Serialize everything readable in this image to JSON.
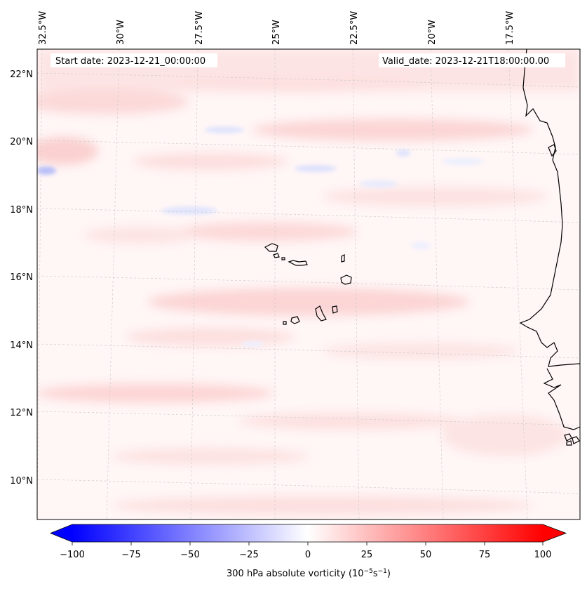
{
  "map": {
    "start_date": "Start date: 2023-12-21_00:00:00",
    "valid_date": "Valid_date: 2023-12-21T18:00:00.00",
    "lon_labels": [
      "32.5°W",
      "30°W",
      "27.5°W",
      "25°W",
      "22.5°W",
      "20°W",
      "17.5°W"
    ],
    "lat_labels": [
      "22°N",
      "20°N",
      "18°N",
      "16°N",
      "14°N",
      "12°N",
      "10°N"
    ],
    "field_name": "300 hPa absolute vorticity"
  },
  "colorbar": {
    "ticks": [
      "−100",
      "−75",
      "−50",
      "−25",
      "0",
      "25",
      "50",
      "75",
      "100"
    ],
    "label_prefix": "300 hPa absolute vorticity (10",
    "label_exp1": "−5",
    "label_mid": "s",
    "label_exp2": "−1",
    "label_suffix": ")",
    "min": -100,
    "max": 100,
    "colors": {
      "negative": "#0000ff",
      "zero": "#ffffff",
      "positive": "#ff0000"
    }
  }
}
